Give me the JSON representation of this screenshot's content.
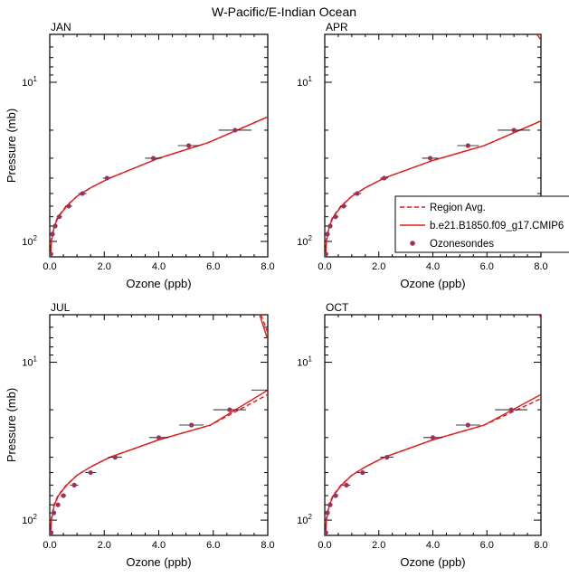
{
  "figure": {
    "title": "W-Pacific/E-Indian Ocean"
  },
  "legend": {
    "placement": "over right edge of APR panel",
    "entries": [
      {
        "label": "Region Avg.",
        "style": "dashed-line",
        "color": "#e41a1c"
      },
      {
        "label": "b.e21.B1850.f09_g17.CMIP6",
        "style": "solid-line",
        "color": "#e41a1c"
      },
      {
        "label": "Ozonesondes",
        "style": "marker",
        "color": "#a0305a"
      }
    ]
  },
  "colors": {
    "model": "#e41a1c",
    "obs_marker": "#a0305a",
    "obs_bar": "#000000",
    "frame": "#000000"
  },
  "chart_data": [
    {
      "type": "line",
      "panel_label": "JAN",
      "xlabel": "Ozone (ppb)",
      "ylabel": "Pressure (mb)",
      "xlim": [
        0,
        8
      ],
      "ylim": [
        125,
        5
      ],
      "y_scale": "log-reversed",
      "x_ticks": [
        "0.0",
        "2.0",
        "4.0",
        "6.0",
        "8.0"
      ],
      "y_ticks": [
        {
          "value": 10,
          "base": "10",
          "exp": "1"
        },
        {
          "value": 100,
          "base": "10",
          "exp": "2"
        }
      ],
      "series": [
        {
          "name": "Region Avg.",
          "style": "dashed",
          "points": [
            [
              0.02,
              125
            ],
            [
              0.05,
              100
            ],
            [
              0.15,
              80
            ],
            [
              0.3,
              70
            ],
            [
              0.6,
              60
            ],
            [
              1.0,
              52
            ],
            [
              1.5,
              46
            ],
            [
              2.2,
              40
            ],
            [
              4.0,
              30
            ],
            [
              5.8,
              24
            ],
            [
              8.0,
              16.5
            ]
          ]
        },
        {
          "name": "b.e21.B1850.f09_g17.CMIP6",
          "style": "solid",
          "points": [
            [
              0.03,
              125
            ],
            [
              0.06,
              100
            ],
            [
              0.17,
              80
            ],
            [
              0.32,
              70
            ],
            [
              0.62,
              60
            ],
            [
              1.0,
              52
            ],
            [
              1.5,
              46
            ],
            [
              2.2,
              40
            ],
            [
              4.0,
              30
            ],
            [
              5.8,
              24
            ],
            [
              8.0,
              16.5
            ]
          ]
        },
        {
          "name": "Ozonesondes",
          "style": "marker",
          "points": [
            [
              0.04,
              120,
              0.02
            ],
            [
              0.1,
              90,
              0.05
            ],
            [
              0.2,
              80,
              0.07
            ],
            [
              0.35,
              70,
              0.1
            ],
            [
              0.7,
              60,
              0.12
            ],
            [
              1.2,
              50,
              0.15
            ],
            [
              2.1,
              40,
              0.15
            ],
            [
              3.8,
              30,
              0.3
            ],
            [
              5.1,
              25,
              0.4
            ],
            [
              6.8,
              20,
              0.6
            ]
          ]
        }
      ]
    },
    {
      "type": "line",
      "panel_label": "APR",
      "xlabel": "Ozone (ppb)",
      "ylabel": "",
      "xlim": [
        0,
        8
      ],
      "ylim": [
        125,
        5
      ],
      "y_scale": "log-reversed",
      "x_ticks": [
        "0.0",
        "2.0",
        "4.0",
        "6.0",
        "8.0"
      ],
      "y_ticks": [
        {
          "value": 10,
          "base": "10",
          "exp": "1"
        },
        {
          "value": 100,
          "base": "10",
          "exp": "2"
        }
      ],
      "series": [
        {
          "name": "Region Avg.",
          "style": "dashed",
          "points": [
            [
              0.02,
              125
            ],
            [
              0.05,
              100
            ],
            [
              0.15,
              80
            ],
            [
              0.3,
              70
            ],
            [
              0.6,
              60
            ],
            [
              1.0,
              52
            ],
            [
              1.5,
              46
            ],
            [
              2.2,
              40
            ],
            [
              4.0,
              31
            ],
            [
              5.9,
              25
            ],
            [
              8.0,
              17.5
            ]
          ]
        },
        {
          "name": "b.e21.B1850.f09_g17.CMIP6",
          "style": "solid",
          "points": [
            [
              0.03,
              125
            ],
            [
              0.06,
              100
            ],
            [
              0.17,
              80
            ],
            [
              0.32,
              70
            ],
            [
              0.62,
              60
            ],
            [
              1.0,
              52
            ],
            [
              1.5,
              46
            ],
            [
              2.2,
              40
            ],
            [
              4.0,
              31
            ],
            [
              5.9,
              25
            ],
            [
              8.0,
              17.5
            ]
          ]
        },
        {
          "name": "b.e21.B1850.f09_g17.CMIP6 (upper)",
          "style": "solid",
          "points": [
            [
              7.85,
              5
            ],
            [
              8.0,
              5.4
            ]
          ]
        },
        {
          "name": "Ozonesondes",
          "style": "marker",
          "points": [
            [
              0.04,
              120,
              0.02
            ],
            [
              0.1,
              90,
              0.05
            ],
            [
              0.2,
              80,
              0.07
            ],
            [
              0.4,
              70,
              0.1
            ],
            [
              0.7,
              60,
              0.12
            ],
            [
              1.2,
              50,
              0.15
            ],
            [
              2.2,
              40,
              0.15
            ],
            [
              3.9,
              30,
              0.3
            ],
            [
              5.3,
              25,
              0.4
            ],
            [
              7.0,
              20,
              0.6
            ]
          ]
        }
      ]
    },
    {
      "type": "line",
      "panel_label": "JUL",
      "xlabel": "Ozone (ppb)",
      "ylabel": "Pressure (mb)",
      "xlim": [
        0,
        8
      ],
      "ylim": [
        125,
        5
      ],
      "y_scale": "log-reversed",
      "x_ticks": [
        "0.0",
        "2.0",
        "4.0",
        "6.0",
        "8.0"
      ],
      "y_ticks": [
        {
          "value": 10,
          "base": "10",
          "exp": "1"
        },
        {
          "value": 100,
          "base": "10",
          "exp": "2"
        }
      ],
      "series": [
        {
          "name": "Region Avg.",
          "style": "dashed",
          "points": [
            [
              0.02,
              125
            ],
            [
              0.05,
              100
            ],
            [
              0.15,
              80
            ],
            [
              0.3,
              70
            ],
            [
              0.6,
              60
            ],
            [
              1.0,
              52
            ],
            [
              1.5,
              46
            ],
            [
              2.2,
              40
            ],
            [
              4.0,
              31
            ],
            [
              5.9,
              25
            ],
            [
              8.0,
              16
            ]
          ]
        },
        {
          "name": "b.e21.B1850.f09_g17.CMIP6",
          "style": "solid",
          "points": [
            [
              0.03,
              125
            ],
            [
              0.06,
              100
            ],
            [
              0.17,
              80
            ],
            [
              0.32,
              70
            ],
            [
              0.62,
              60
            ],
            [
              1.0,
              52
            ],
            [
              1.5,
              46
            ],
            [
              2.2,
              40
            ],
            [
              4.0,
              31
            ],
            [
              5.9,
              25
            ],
            [
              8.0,
              15
            ]
          ]
        },
        {
          "name": "b.e21.B1850.f09_g17.CMIP6 (upper)",
          "style": "solid",
          "points": [
            [
              7.7,
              5
            ],
            [
              8.0,
              7.2
            ]
          ]
        },
        {
          "name": "Region Avg. (upper)",
          "style": "dashed",
          "points": [
            [
              7.75,
              5
            ],
            [
              8.0,
              6.5
            ]
          ]
        },
        {
          "name": "Ozonesondes",
          "style": "marker",
          "points": [
            [
              0.05,
              120,
              0.02
            ],
            [
              0.15,
              90,
              0.05
            ],
            [
              0.3,
              80,
              0.08
            ],
            [
              0.5,
              70,
              0.1
            ],
            [
              0.9,
              60,
              0.15
            ],
            [
              1.5,
              50,
              0.2
            ],
            [
              2.4,
              40,
              0.25
            ],
            [
              4.0,
              30,
              0.35
            ],
            [
              5.2,
              25,
              0.45
            ],
            [
              6.6,
              20,
              0.6
            ]
          ]
        },
        {
          "name": "Ozonesondes (error bar only)",
          "style": "bar",
          "points": [
            [
              8.0,
              15,
              0.6
            ]
          ]
        }
      ]
    },
    {
      "type": "line",
      "panel_label": "OCT",
      "xlabel": "Ozone (ppb)",
      "ylabel": "",
      "xlim": [
        0,
        8
      ],
      "ylim": [
        125,
        5
      ],
      "y_scale": "log-reversed",
      "x_ticks": [
        "0.0",
        "2.0",
        "4.0",
        "6.0",
        "8.0"
      ],
      "y_ticks": [
        {
          "value": 10,
          "base": "10",
          "exp": "1"
        },
        {
          "value": 100,
          "base": "10",
          "exp": "2"
        }
      ],
      "series": [
        {
          "name": "Region Avg.",
          "style": "dashed",
          "points": [
            [
              0.02,
              125
            ],
            [
              0.05,
              100
            ],
            [
              0.15,
              80
            ],
            [
              0.3,
              70
            ],
            [
              0.6,
              60
            ],
            [
              1.0,
              52
            ],
            [
              1.5,
              46
            ],
            [
              2.2,
              40
            ],
            [
              4.0,
              31
            ],
            [
              5.9,
              25
            ],
            [
              8.0,
              17
            ]
          ]
        },
        {
          "name": "b.e21.B1850.f09_g17.CMIP6",
          "style": "solid",
          "points": [
            [
              0.03,
              125
            ],
            [
              0.06,
              100
            ],
            [
              0.17,
              80
            ],
            [
              0.32,
              70
            ],
            [
              0.62,
              60
            ],
            [
              1.0,
              52
            ],
            [
              1.5,
              46
            ],
            [
              2.2,
              40
            ],
            [
              4.0,
              31
            ],
            [
              5.9,
              25
            ],
            [
              8.0,
              16
            ]
          ]
        },
        {
          "name": "b.e21.B1850.f09_g17.CMIP6 (upper)",
          "style": "solid",
          "points": [
            [
              7.95,
              5
            ],
            [
              8.0,
              5.3
            ]
          ]
        },
        {
          "name": "Ozonesondes",
          "style": "marker",
          "points": [
            [
              0.04,
              120,
              0.02
            ],
            [
              0.1,
              90,
              0.05
            ],
            [
              0.2,
              80,
              0.07
            ],
            [
              0.4,
              70,
              0.1
            ],
            [
              0.8,
              60,
              0.15
            ],
            [
              1.4,
              50,
              0.2
            ],
            [
              2.3,
              40,
              0.25
            ],
            [
              4.0,
              30,
              0.35
            ],
            [
              5.3,
              25,
              0.45
            ],
            [
              6.9,
              20,
              0.6
            ]
          ]
        }
      ]
    }
  ]
}
